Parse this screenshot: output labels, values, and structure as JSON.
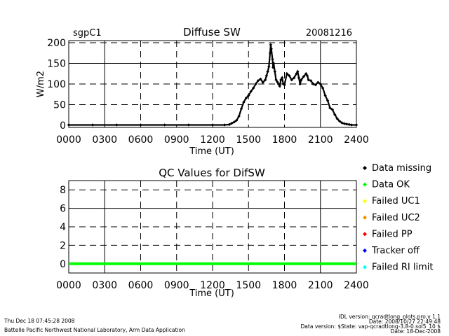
{
  "charts": {
    "top": {
      "site": "sgpC1",
      "title": "Diffuse SW",
      "date": "20081216",
      "xlabel": "Time (UT)",
      "ylabel": "W/m2"
    },
    "bottom": {
      "title": "QC Values for DifSW",
      "xlabel": "Time (UT)"
    }
  },
  "legend": {
    "items": [
      {
        "label": "Data missing",
        "color": "#000000"
      },
      {
        "label": "Data OK",
        "color": "#00ff00"
      },
      {
        "label": "Failed UC1",
        "color": "#ffff00"
      },
      {
        "label": "Failed UC2",
        "color": "#ff8c00"
      },
      {
        "label": "Failed PP",
        "color": "#ff0000"
      },
      {
        "label": "Tracker off",
        "color": "#0000ff"
      },
      {
        "label": "Failed RI limit",
        "color": "#00ffff"
      }
    ]
  },
  "footer": {
    "timestamp": "Thu Dec 18 07:45:28 2008",
    "lab": "Battelle Pacific Northwest National Laboratory, Arm Data Application",
    "idl": "IDL version: qcradtlong_plots.pro,v 1.1",
    "date": "Date: 2008/10/27 22:49:48",
    "state": "Data version: $State: vap-qcradtlong-3.8-0.sol5_10 $",
    "date2": "Date: 18-Dec-2008"
  },
  "chart_data": [
    {
      "type": "scatter",
      "name": "diffuse-sw",
      "x_ticks": [
        "0000",
        "0300",
        "0600",
        "0900",
        "1200",
        "1500",
        "1800",
        "2100",
        "2400"
      ],
      "y_ticks": [
        0,
        50,
        100,
        150,
        200
      ],
      "xlim": [
        0,
        24
      ],
      "ylim": [
        -5,
        205
      ],
      "grid": true,
      "points": [
        [
          0,
          1
        ],
        [
          2,
          1
        ],
        [
          4,
          1
        ],
        [
          6,
          1
        ],
        [
          8,
          1
        ],
        [
          10,
          1
        ],
        [
          12,
          1
        ],
        [
          13,
          1
        ],
        [
          13.4,
          2
        ],
        [
          13.6,
          5
        ],
        [
          13.8,
          8
        ],
        [
          14.0,
          12
        ],
        [
          14.2,
          22
        ],
        [
          14.4,
          40
        ],
        [
          14.6,
          56
        ],
        [
          14.8,
          66
        ],
        [
          15.0,
          72
        ],
        [
          15.2,
          82
        ],
        [
          15.4,
          90
        ],
        [
          15.6,
          100
        ],
        [
          15.8,
          108
        ],
        [
          16.0,
          112
        ],
        [
          16.2,
          104
        ],
        [
          16.4,
          110
        ],
        [
          16.5,
          120
        ],
        [
          16.6,
          130
        ],
        [
          16.7,
          142
        ],
        [
          16.8,
          175
        ],
        [
          16.85,
          195
        ],
        [
          16.9,
          185
        ],
        [
          17.0,
          160
        ],
        [
          17.05,
          140
        ],
        [
          17.1,
          150
        ],
        [
          17.2,
          130
        ],
        [
          17.3,
          110
        ],
        [
          17.4,
          105
        ],
        [
          17.5,
          100
        ],
        [
          17.6,
          95
        ],
        [
          17.7,
          110
        ],
        [
          17.8,
          115
        ],
        [
          17.9,
          100
        ],
        [
          18.0,
          98
        ],
        [
          18.2,
          125
        ],
        [
          18.4,
          120
        ],
        [
          18.6,
          110
        ],
        [
          18.8,
          115
        ],
        [
          19.0,
          125
        ],
        [
          19.1,
          130
        ],
        [
          19.2,
          115
        ],
        [
          19.3,
          100
        ],
        [
          19.4,
          110
        ],
        [
          19.6,
          118
        ],
        [
          19.8,
          125
        ],
        [
          19.9,
          120
        ],
        [
          20.0,
          110
        ],
        [
          20.2,
          108
        ],
        [
          20.4,
          100
        ],
        [
          20.6,
          98
        ],
        [
          20.8,
          104
        ],
        [
          21.0,
          100
        ],
        [
          21.2,
          90
        ],
        [
          21.4,
          72
        ],
        [
          21.6,
          60
        ],
        [
          21.8,
          42
        ],
        [
          22.0,
          38
        ],
        [
          22.2,
          26
        ],
        [
          22.4,
          16
        ],
        [
          22.6,
          10
        ],
        [
          22.8,
          6
        ],
        [
          23.0,
          4
        ],
        [
          23.2,
          3
        ],
        [
          23.4,
          2
        ],
        [
          23.6,
          1
        ],
        [
          24,
          1
        ]
      ]
    },
    {
      "type": "line",
      "name": "qc-values",
      "x_ticks": [
        "0000",
        "0300",
        "0600",
        "0900",
        "1200",
        "1500",
        "1800",
        "2100",
        "2400"
      ],
      "y_ticks": [
        0,
        2,
        4,
        6,
        8
      ],
      "xlim": [
        0,
        24
      ],
      "ylim": [
        -1,
        9
      ],
      "grid": true,
      "series": [
        {
          "values_constant": 0,
          "color": "#00ff00"
        }
      ]
    }
  ]
}
